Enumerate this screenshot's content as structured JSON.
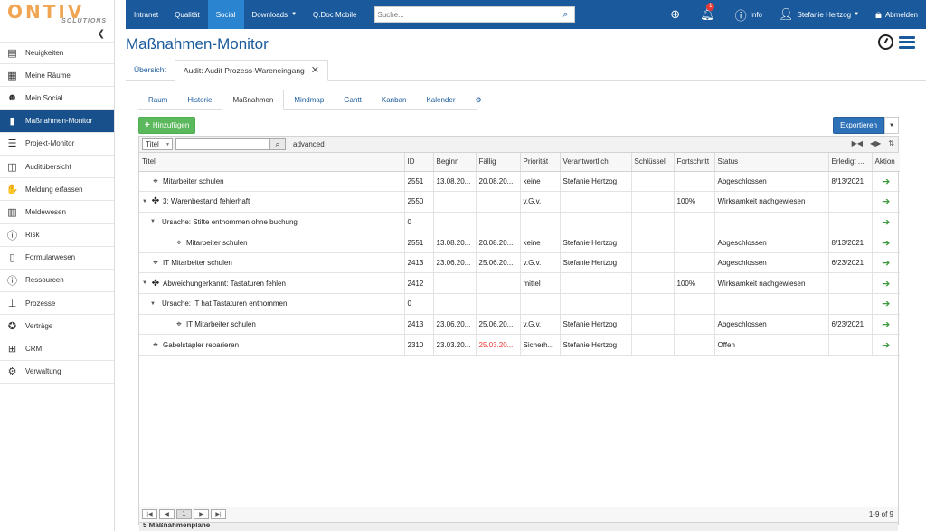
{
  "brand": {
    "name": "ONTIV",
    "sub": "SOLUTIONS"
  },
  "sidebar": {
    "items": [
      {
        "label": "Neuigkeiten",
        "icon": "newspaper-icon",
        "glyph": "▤"
      },
      {
        "label": "Meine Räume",
        "icon": "grid-icon",
        "glyph": "▦"
      },
      {
        "label": "Mein Social",
        "icon": "person-bubble-icon",
        "glyph": "☻"
      },
      {
        "label": "Maßnahmen-Monitor",
        "icon": "bar-chart-icon",
        "glyph": "▮"
      },
      {
        "label": "Projekt-Monitor",
        "icon": "project-list-icon",
        "glyph": "☰"
      },
      {
        "label": "Auditübersicht",
        "icon": "audit-chart-icon",
        "glyph": "◫"
      },
      {
        "label": "Meldung erfassen",
        "icon": "hand-icon",
        "glyph": "✋"
      },
      {
        "label": "Meldewesen",
        "icon": "books-icon",
        "glyph": "▥"
      },
      {
        "label": "Risk",
        "icon": "exclamation-circle-icon",
        "glyph": "ⓘ"
      },
      {
        "label": "Formularwesen",
        "icon": "document-icon",
        "glyph": "▯"
      },
      {
        "label": "Ressourcen",
        "icon": "exclamation-circle-icon",
        "glyph": "ⓘ"
      },
      {
        "label": "Prozesse",
        "icon": "hierarchy-icon",
        "glyph": "⊥"
      },
      {
        "label": "Verträge",
        "icon": "seal-icon",
        "glyph": "✪"
      },
      {
        "label": "CRM",
        "icon": "crm-icon",
        "glyph": "⊞"
      },
      {
        "label": "Verwaltung",
        "icon": "gear-icon",
        "glyph": "⚙"
      }
    ]
  },
  "topbar": {
    "links": [
      "Intranet",
      "Qualität",
      "Social",
      "Downloads",
      "Q.Doc Mobile"
    ],
    "search_placeholder": "Suche...",
    "notification_count": "1",
    "info_label": "Info",
    "user_name": "Stefanie Hertzog",
    "logout_label": "Abmelden"
  },
  "page": {
    "title": "Maßnahmen-Monitor",
    "breadcrumb_overview": "Übersicht",
    "breadcrumb_current": "Audit: Audit Prozess-Wareneingang",
    "tabs": [
      "Raum",
      "Historie",
      "Maßnahmen",
      "Mindmap",
      "Gantt",
      "Kanban",
      "Kalender"
    ]
  },
  "toolbar": {
    "add_label": "Hinzufügen",
    "export_label": "Exportieren"
  },
  "filter": {
    "field": "Titel",
    "advanced": "advanced"
  },
  "grid": {
    "columns": [
      "Titel",
      "ID",
      "Beginn",
      "Fällig",
      "Priorität",
      "Verantwortlich",
      "Schlüssel",
      "Fortschritt",
      "Status",
      "Erledigt ...",
      "Aktion"
    ],
    "rows": [
      {
        "indent": 0,
        "toggle": "",
        "icon": "crosshair-icon",
        "glyph": "⌖",
        "title": "Mitarbeiter schulen",
        "id": "2551",
        "beginn": "13.08.20...",
        "faellig": "20.08.20...",
        "faellig_red": false,
        "prio": "keine",
        "verantw": "Stefanie Hertzog",
        "schluessel": "",
        "fortschritt": "",
        "status": "Abgeschlossen",
        "erledigt": "8/13/2021"
      },
      {
        "indent": 0,
        "toggle": "▼",
        "icon": "puzzle-icon",
        "glyph": "✤",
        "title": "3: Warenbestand fehlerhaft",
        "id": "2550",
        "beginn": "",
        "faellig": "",
        "faellig_red": false,
        "prio": "v.G.v.",
        "verantw": "",
        "schluessel": "",
        "fortschritt": "100%",
        "status": "Wirksamkeit nachgewiesen",
        "erledigt": ""
      },
      {
        "indent": 1,
        "toggle": "▼",
        "icon": "",
        "glyph": "",
        "title": "Ursache: Stifte entnommen ohne buchung",
        "id": "0",
        "beginn": "",
        "faellig": "",
        "faellig_red": false,
        "prio": "",
        "verantw": "",
        "schluessel": "",
        "fortschritt": "",
        "status": "",
        "erledigt": ""
      },
      {
        "indent": 2,
        "toggle": "",
        "icon": "crosshair-icon",
        "glyph": "⌖",
        "title": "Mitarbeiter schulen",
        "id": "2551",
        "beginn": "13.08.20...",
        "faellig": "20.08.20...",
        "faellig_red": false,
        "prio": "keine",
        "verantw": "Stefanie Hertzog",
        "schluessel": "",
        "fortschritt": "",
        "status": "Abgeschlossen",
        "erledigt": "8/13/2021"
      },
      {
        "indent": 0,
        "toggle": "",
        "icon": "crosshair-icon",
        "glyph": "⌖",
        "title": "IT Mitarbeiter schulen",
        "id": "2413",
        "beginn": "23.06.20...",
        "faellig": "25.06.20...",
        "faellig_red": false,
        "prio": "v.G.v.",
        "verantw": "Stefanie Hertzog",
        "schluessel": "",
        "fortschritt": "",
        "status": "Abgeschlossen",
        "erledigt": "6/23/2021"
      },
      {
        "indent": 0,
        "toggle": "▼",
        "icon": "puzzle-icon",
        "glyph": "✤",
        "title": "Abweichungerkannt: Tastaturen fehlen",
        "id": "2412",
        "beginn": "",
        "faellig": "",
        "faellig_red": false,
        "prio": "mittel",
        "verantw": "",
        "schluessel": "",
        "fortschritt": "100%",
        "status": "Wirksamkeit nachgewiesen",
        "erledigt": ""
      },
      {
        "indent": 1,
        "toggle": "▼",
        "icon": "",
        "glyph": "",
        "title": "Ursache: IT hat Tastaturen entnommen",
        "id": "0",
        "beginn": "",
        "faellig": "",
        "faellig_red": false,
        "prio": "",
        "verantw": "",
        "schluessel": "",
        "fortschritt": "",
        "status": "",
        "erledigt": ""
      },
      {
        "indent": 2,
        "toggle": "",
        "icon": "crosshair-icon",
        "glyph": "⌖",
        "title": "IT Mitarbeiter schulen",
        "id": "2413",
        "beginn": "23.06.20...",
        "faellig": "25.06.20...",
        "faellig_red": false,
        "prio": "v.G.v.",
        "verantw": "Stefanie Hertzog",
        "schluessel": "",
        "fortschritt": "",
        "status": "Abgeschlossen",
        "erledigt": "6/23/2021"
      },
      {
        "indent": 0,
        "toggle": "",
        "icon": "crosshair-icon",
        "glyph": "⌖",
        "title": "Gabelstapler reparieren",
        "id": "2310",
        "beginn": "23.03.20...",
        "faellig": "25.03.20...",
        "faellig_red": true,
        "prio": "Sicherh...",
        "verantw": "Stefanie Hertzog",
        "schluessel": "",
        "fortschritt": "",
        "status": "Offen",
        "erledigt": ""
      }
    ],
    "footer_count": "5 Maßnahmenpläne",
    "current_page": "1",
    "pager_info": "1-9 of 9"
  }
}
